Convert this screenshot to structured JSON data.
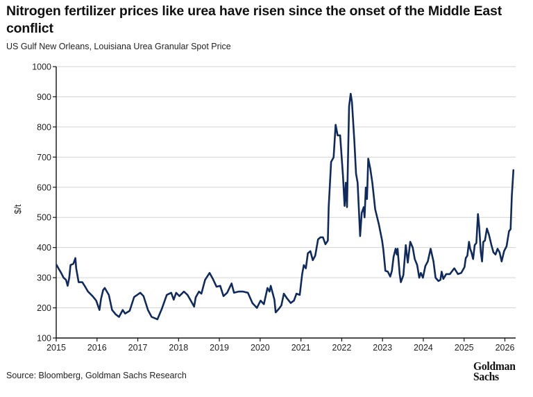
{
  "header": {
    "title": "Nitrogen fertilizer prices like urea have risen since the onset of the Middle East conflict",
    "subtitle": "US Gulf New Orleans, Louisiana Urea Granular Spot Price"
  },
  "footer": {
    "source": "Source: Bloomberg, Goldman Sachs Research",
    "logo_line1": "Goldman",
    "logo_line2": "Sachs"
  },
  "colors": {
    "line": "#0f2a5c",
    "grid": "#d3d3d3",
    "axis": "#111111"
  },
  "chart_data": {
    "type": "line",
    "title": "Nitrogen fertilizer prices like urea have risen since the onset of the Middle East conflict",
    "subtitle": "US Gulf New Orleans, Louisiana Urea Granular Spot Price",
    "xlabel": "",
    "ylabel": "$/t",
    "xlim": [
      2015,
      2026.3
    ],
    "ylim": [
      100,
      1000
    ],
    "x_ticks": [
      2015,
      2016,
      2017,
      2018,
      2019,
      2020,
      2021,
      2022,
      2023,
      2024,
      2025,
      2026
    ],
    "x_tick_labels": [
      "2015",
      "2016",
      "2017",
      "2018",
      "2019",
      "2020",
      "2021",
      "2022",
      "2023",
      "2024",
      "2025",
      "2026"
    ],
    "y_ticks": [
      100,
      200,
      300,
      400,
      500,
      600,
      700,
      800,
      900,
      1000
    ],
    "y_tick_labels": [
      "100",
      "200",
      "300",
      "400",
      "500",
      "600",
      "700",
      "800",
      "900",
      "1000"
    ],
    "grid": "horizontal",
    "legend": "none",
    "series": [
      {
        "name": "US Gulf New Orleans Urea Granular Spot Price",
        "x": [
          2015.01,
          2015.06,
          2015.12,
          2015.18,
          2015.24,
          2015.28,
          2015.32,
          2015.35,
          2015.42,
          2015.47,
          2015.49,
          2015.55,
          2015.64,
          2015.71,
          2015.78,
          2015.89,
          2015.98,
          2016.06,
          2016.1,
          2016.15,
          2016.19,
          2016.29,
          2016.37,
          2016.46,
          2016.54,
          2016.63,
          2016.69,
          2016.8,
          2016.91,
          2017.06,
          2017.14,
          2017.25,
          2017.34,
          2017.48,
          2017.59,
          2017.71,
          2017.82,
          2017.88,
          2017.94,
          2018.02,
          2018.13,
          2018.22,
          2018.3,
          2018.38,
          2018.42,
          2018.5,
          2018.56,
          2018.65,
          2018.76,
          2018.84,
          2018.93,
          2019.02,
          2019.1,
          2019.19,
          2019.3,
          2019.36,
          2019.47,
          2019.58,
          2019.7,
          2019.81,
          2019.92,
          2020.01,
          2020.09,
          2020.18,
          2020.23,
          2020.26,
          2020.35,
          2020.38,
          2020.46,
          2020.52,
          2020.58,
          2020.66,
          2020.75,
          2020.83,
          2020.89,
          2020.97,
          2021.03,
          2021.07,
          2021.12,
          2021.17,
          2021.23,
          2021.29,
          2021.35,
          2021.42,
          2021.48,
          2021.54,
          2021.6,
          2021.66,
          2021.68,
          2021.74,
          2021.8,
          2021.85,
          2021.9,
          2021.96,
          2022.03,
          2022.07,
          2022.1,
          2022.13,
          2022.18,
          2022.22,
          2022.25,
          2022.31,
          2022.35,
          2022.39,
          2022.45,
          2022.49,
          2022.54,
          2022.56,
          2022.59,
          2022.62,
          2022.65,
          2022.7,
          2022.75,
          2022.82,
          2022.91,
          2022.99,
          2023.02,
          2023.07,
          2023.13,
          2023.19,
          2023.23,
          2023.27,
          2023.32,
          2023.35,
          2023.37,
          2023.42,
          2023.45,
          2023.51,
          2023.57,
          2023.62,
          2023.68,
          2023.74,
          2023.79,
          2023.85,
          2023.9,
          2023.94,
          2023.99,
          2024.05,
          2024.11,
          2024.18,
          2024.25,
          2024.3,
          2024.37,
          2024.42,
          2024.45,
          2024.49,
          2024.56,
          2024.65,
          2024.76,
          2024.85,
          2024.93,
          2025.01,
          2025.04,
          2025.08,
          2025.12,
          2025.15,
          2025.18,
          2025.22,
          2025.26,
          2025.3,
          2025.34,
          2025.37,
          2025.41,
          2025.44,
          2025.47,
          2025.51,
          2025.56,
          2025.61,
          2025.67,
          2025.72,
          2025.77,
          2025.82,
          2025.87,
          2025.92,
          2025.98,
          2026.04,
          2026.1,
          2026.14,
          2026.17,
          2026.21
        ],
        "values": [
          342,
          330,
          316,
          300,
          293,
          273,
          300,
          342,
          346,
          365,
          331,
          285,
          285,
          270,
          254,
          239,
          224,
          193,
          230,
          259,
          266,
          243,
          193,
          178,
          170,
          193,
          181,
          190,
          236,
          250,
          239,
          193,
          170,
          162,
          197,
          243,
          250,
          227,
          250,
          239,
          254,
          243,
          224,
          204,
          235,
          254,
          247,
          293,
          316,
          296,
          270,
          273,
          239,
          250,
          281,
          250,
          254,
          254,
          250,
          216,
          200,
          224,
          212,
          266,
          254,
          273,
          227,
          185,
          197,
          208,
          247,
          231,
          216,
          224,
          247,
          243,
          312,
          342,
          331,
          381,
          388,
          358,
          373,
          427,
          434,
          434,
          411,
          423,
          534,
          684,
          699,
          807,
          772,
          772,
          638,
          538,
          615,
          534,
          868,
          910,
          883,
          753,
          645,
          615,
          438,
          515,
          534,
          500,
          599,
          561,
          695,
          661,
          615,
          527,
          477,
          423,
          392,
          323,
          320,
          304,
          323,
          369,
          396,
          377,
          396,
          312,
          285,
          308,
          408,
          350,
          419,
          400,
          362,
          342,
          300,
          316,
          300,
          339,
          354,
          396,
          354,
          300,
          289,
          293,
          320,
          296,
          312,
          312,
          331,
          312,
          316,
          335,
          365,
          373,
          419,
          396,
          384,
          362,
          408,
          415,
          511,
          469,
          384,
          354,
          419,
          423,
          463,
          442,
          408,
          384,
          377,
          396,
          384,
          354,
          388,
          404,
          454,
          461,
          572,
          657
        ]
      }
    ]
  }
}
